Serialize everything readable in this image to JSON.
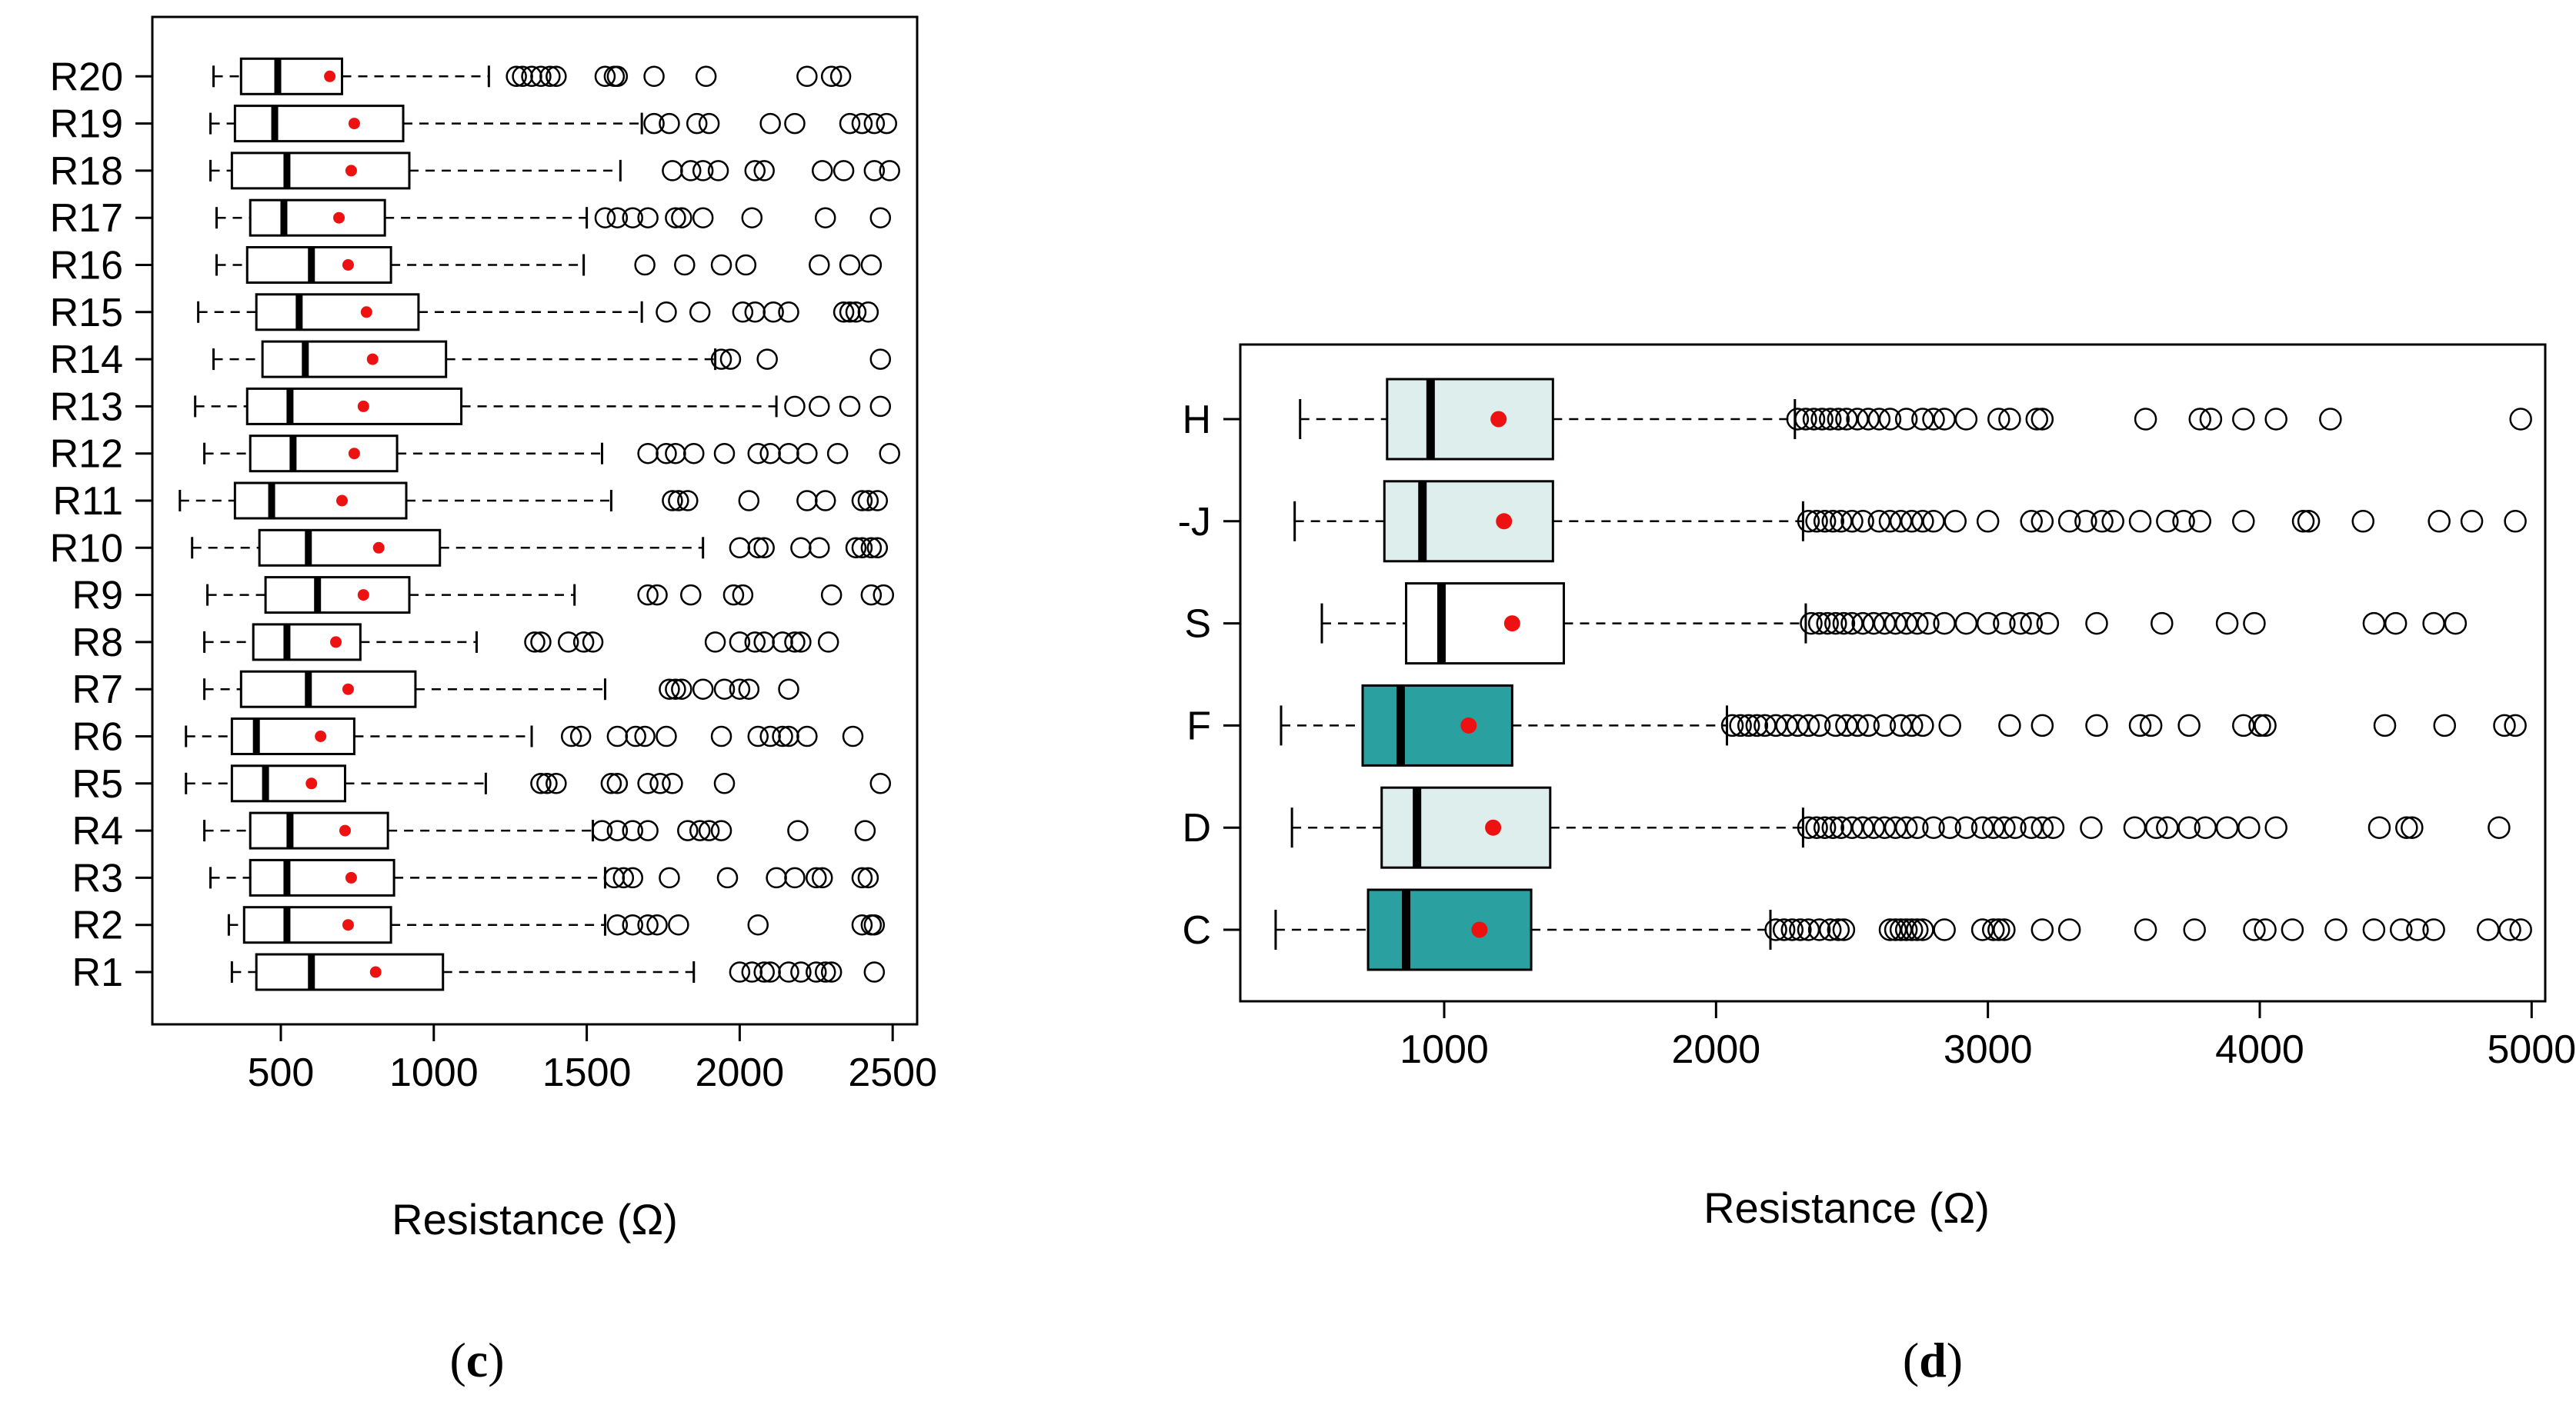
{
  "chart_data": [
    {
      "type": "boxplot",
      "orientation": "horizontal",
      "panel_label": {
        "open": "(",
        "letter": "c",
        "close": ")"
      },
      "xlabel": "Resistance (Ω)",
      "xlim": [
        80,
        2580
      ],
      "xticks": [
        500,
        1000,
        1500,
        2000,
        2500
      ],
      "colors": {
        "box_fill": "#ffffff",
        "mean": "#ee1111"
      },
      "categories": [
        "R1",
        "R2",
        "R3",
        "R4",
        "R5",
        "R6",
        "R7",
        "R8",
        "R9",
        "R10",
        "R11",
        "R12",
        "R13",
        "R14",
        "R15",
        "R16",
        "R17",
        "R18",
        "R19",
        "R20"
      ],
      "boxes": [
        {
          "name": "R1",
          "wlo": 340,
          "q1": 420,
          "median": 600,
          "q3": 1030,
          "whi": 1850,
          "mean": 810,
          "outliers": [
            2000,
            2040,
            2080,
            2100,
            2160,
            2200,
            2250,
            2280,
            2300,
            2440
          ]
        },
        {
          "name": "R2",
          "wlo": 330,
          "q1": 380,
          "median": 520,
          "q3": 860,
          "whi": 1560,
          "mean": 720,
          "outliers": [
            1600,
            1650,
            1700,
            1730,
            1800,
            2060,
            2400,
            2430,
            2440
          ]
        },
        {
          "name": "R3",
          "wlo": 270,
          "q1": 400,
          "median": 520,
          "q3": 870,
          "whi": 1560,
          "mean": 730,
          "outliers": [
            1590,
            1620,
            1650,
            1770,
            1960,
            2120,
            2180,
            2250,
            2270,
            2400,
            2420
          ]
        },
        {
          "name": "R4",
          "wlo": 250,
          "q1": 400,
          "median": 530,
          "q3": 850,
          "whi": 1520,
          "mean": 710,
          "outliers": [
            1550,
            1600,
            1650,
            1700,
            1830,
            1870,
            1900,
            1940,
            2190,
            2410
          ]
        },
        {
          "name": "R5",
          "wlo": 190,
          "q1": 340,
          "median": 450,
          "q3": 710,
          "whi": 1170,
          "mean": 600,
          "outliers": [
            1350,
            1370,
            1400,
            1580,
            1600,
            1700,
            1740,
            1780,
            1950,
            2460
          ]
        },
        {
          "name": "R6",
          "wlo": 190,
          "q1": 340,
          "median": 420,
          "q3": 740,
          "whi": 1320,
          "mean": 630,
          "outliers": [
            1450,
            1480,
            1600,
            1660,
            1690,
            1760,
            1940,
            2060,
            2100,
            2140,
            2160,
            2220,
            2370
          ]
        },
        {
          "name": "R7",
          "wlo": 250,
          "q1": 370,
          "median": 590,
          "q3": 940,
          "whi": 1560,
          "mean": 720,
          "outliers": [
            1770,
            1790,
            1810,
            1880,
            1950,
            2000,
            2030,
            2160
          ]
        },
        {
          "name": "R8",
          "wlo": 250,
          "q1": 410,
          "median": 520,
          "q3": 760,
          "whi": 1140,
          "mean": 680,
          "outliers": [
            1330,
            1350,
            1440,
            1490,
            1520,
            1920,
            2000,
            2050,
            2080,
            2140,
            2180,
            2200,
            2290
          ]
        },
        {
          "name": "R9",
          "wlo": 260,
          "q1": 450,
          "median": 620,
          "q3": 920,
          "whi": 1460,
          "mean": 770,
          "outliers": [
            1700,
            1730,
            1840,
            1980,
            2010,
            2300,
            2430,
            2470
          ]
        },
        {
          "name": "R10",
          "wlo": 210,
          "q1": 430,
          "median": 590,
          "q3": 1020,
          "whi": 1880,
          "mean": 820,
          "outliers": [
            2000,
            2060,
            2080,
            2200,
            2260,
            2380,
            2400,
            2430,
            2450
          ]
        },
        {
          "name": "R11",
          "wlo": 170,
          "q1": 350,
          "median": 470,
          "q3": 910,
          "whi": 1580,
          "mean": 700,
          "outliers": [
            1780,
            1800,
            1830,
            2030,
            2220,
            2280,
            2400,
            2420,
            2450
          ]
        },
        {
          "name": "R12",
          "wlo": 250,
          "q1": 400,
          "median": 540,
          "q3": 880,
          "whi": 1550,
          "mean": 740,
          "outliers": [
            1700,
            1760,
            1790,
            1850,
            1950,
            2060,
            2100,
            2160,
            2220,
            2320,
            2490
          ]
        },
        {
          "name": "R13",
          "wlo": 220,
          "q1": 390,
          "median": 530,
          "q3": 1090,
          "whi": 2120,
          "mean": 770,
          "outliers": [
            2180,
            2260,
            2360,
            2460
          ]
        },
        {
          "name": "R14",
          "wlo": 280,
          "q1": 440,
          "median": 580,
          "q3": 1040,
          "whi": 1920,
          "mean": 800,
          "outliers": [
            1940,
            1970,
            2090,
            2460
          ]
        },
        {
          "name": "R15",
          "wlo": 230,
          "q1": 420,
          "median": 560,
          "q3": 950,
          "whi": 1680,
          "mean": 780,
          "outliers": [
            1760,
            1870,
            2010,
            2050,
            2110,
            2160,
            2340,
            2360,
            2380,
            2420
          ]
        },
        {
          "name": "R16",
          "wlo": 290,
          "q1": 390,
          "median": 600,
          "q3": 860,
          "whi": 1490,
          "mean": 720,
          "outliers": [
            1690,
            1820,
            1940,
            2020,
            2260,
            2360,
            2430
          ]
        },
        {
          "name": "R17",
          "wlo": 290,
          "q1": 400,
          "median": 510,
          "q3": 840,
          "whi": 1500,
          "mean": 690,
          "outliers": [
            1560,
            1600,
            1650,
            1700,
            1790,
            1810,
            1880,
            2040,
            2280,
            2460
          ]
        },
        {
          "name": "R18",
          "wlo": 270,
          "q1": 340,
          "median": 520,
          "q3": 920,
          "whi": 1610,
          "mean": 730,
          "outliers": [
            1780,
            1840,
            1880,
            1930,
            2050,
            2080,
            2270,
            2340,
            2440,
            2490
          ]
        },
        {
          "name": "R19",
          "wlo": 270,
          "q1": 350,
          "median": 480,
          "q3": 900,
          "whi": 1680,
          "mean": 740,
          "outliers": [
            1720,
            1770,
            1860,
            1900,
            2100,
            2180,
            2360,
            2400,
            2440,
            2480
          ]
        },
        {
          "name": "R20",
          "wlo": 280,
          "q1": 370,
          "median": 490,
          "q3": 700,
          "whi": 1180,
          "mean": 660,
          "outliers": [
            1270,
            1290,
            1320,
            1350,
            1380,
            1400,
            1560,
            1590,
            1600,
            1720,
            1890,
            2220,
            2300,
            2330
          ]
        }
      ]
    },
    {
      "type": "boxplot",
      "orientation": "horizontal",
      "panel_label": {
        "open": "(",
        "letter": "d",
        "close": ")"
      },
      "xlabel": "Resistance (Ω)",
      "xlim": [
        250,
        5050
      ],
      "xticks": [
        1000,
        2000,
        3000,
        4000,
        5000
      ],
      "colors": {
        "light": "#ddeeed",
        "white": "#ffffff",
        "teal": "#2aa0a0",
        "mean": "#ee1111"
      },
      "categories": [
        "C",
        "D",
        "F",
        "S",
        "J",
        "H"
      ],
      "tick_labels": [
        "C",
        "D",
        "F",
        "S",
        "-J",
        "H"
      ],
      "boxes": [
        {
          "name": "C",
          "color": "teal",
          "wlo": 380,
          "q1": 720,
          "median": 860,
          "q3": 1320,
          "whi": 2200,
          "mean": 1130,
          "outliers": [
            2220,
            2250,
            2280,
            2310,
            2340,
            2380,
            2420,
            2450,
            2470,
            2640,
            2660,
            2680,
            2700,
            2720,
            2740,
            2760,
            2840,
            2980,
            3020,
            3040,
            3060,
            3200,
            3300,
            3580,
            3760,
            3980,
            4020,
            4120,
            4280,
            4420,
            4520,
            4580,
            4640,
            4840,
            4920,
            4960
          ]
        },
        {
          "name": "D",
          "color": "light",
          "wlo": 440,
          "q1": 770,
          "median": 900,
          "q3": 1390,
          "whi": 2320,
          "mean": 1180,
          "outliers": [
            2340,
            2370,
            2400,
            2430,
            2460,
            2500,
            2540,
            2580,
            2620,
            2660,
            2700,
            2740,
            2800,
            2860,
            2920,
            2980,
            3020,
            3060,
            3100,
            3160,
            3200,
            3240,
            3380,
            3540,
            3620,
            3660,
            3740,
            3800,
            3880,
            3960,
            4060,
            4440,
            4540,
            4560,
            4880
          ]
        },
        {
          "name": "F",
          "color": "teal",
          "wlo": 400,
          "q1": 700,
          "median": 840,
          "q3": 1250,
          "whi": 2040,
          "mean": 1090,
          "outliers": [
            2060,
            2090,
            2120,
            2150,
            2180,
            2220,
            2260,
            2300,
            2340,
            2380,
            2440,
            2480,
            2520,
            2560,
            2620,
            2680,
            2720,
            2760,
            2860,
            3080,
            3200,
            3400,
            3560,
            3600,
            3740,
            3940,
            4000,
            4020,
            4460,
            4680,
            4900,
            4940
          ]
        },
        {
          "name": "S",
          "color": "white",
          "wlo": 550,
          "q1": 860,
          "median": 990,
          "q3": 1440,
          "whi": 2330,
          "mean": 1250,
          "outliers": [
            2350,
            2380,
            2410,
            2440,
            2470,
            2500,
            2540,
            2580,
            2620,
            2660,
            2700,
            2740,
            2780,
            2840,
            2920,
            3000,
            3060,
            3120,
            3160,
            3220,
            3400,
            3640,
            3880,
            3980,
            4420,
            4500,
            4640,
            4720
          ]
        },
        {
          "name": "J",
          "color": "light",
          "wlo": 450,
          "q1": 780,
          "median": 920,
          "q3": 1400,
          "whi": 2320,
          "mean": 1220,
          "outliers": [
            2340,
            2370,
            2400,
            2430,
            2460,
            2500,
            2540,
            2600,
            2640,
            2680,
            2720,
            2760,
            2800,
            2880,
            3000,
            3160,
            3200,
            3300,
            3360,
            3420,
            3460,
            3560,
            3660,
            3720,
            3780,
            3940,
            4160,
            4180,
            4380,
            4660,
            4780,
            4940
          ]
        },
        {
          "name": "H",
          "color": "light",
          "wlo": 470,
          "q1": 790,
          "median": 950,
          "q3": 1400,
          "whi": 2290,
          "mean": 1200,
          "outliers": [
            2300,
            2330,
            2360,
            2390,
            2420,
            2450,
            2480,
            2520,
            2560,
            2600,
            2640,
            2700,
            2760,
            2800,
            2840,
            2920,
            3040,
            3080,
            3180,
            3200,
            3580,
            3780,
            3820,
            3940,
            4060,
            4260,
            4960
          ]
        }
      ]
    }
  ]
}
